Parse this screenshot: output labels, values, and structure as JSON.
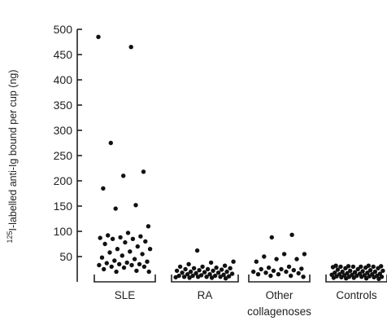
{
  "chart_data": {
    "type": "scatter",
    "title": "",
    "ylabel": "125I-labelled anti-Ig bound per cup (ng)",
    "ylabel_superscript": "125",
    "ylabel_main": "I-labelled anti-Ig bound per cup (ng)",
    "ylim": [
      0,
      500
    ],
    "yticks": [
      50,
      100,
      150,
      200,
      250,
      300,
      350,
      400,
      450,
      500
    ],
    "grid": false,
    "categories": [
      {
        "label": "SLE",
        "label_line2": ""
      },
      {
        "label": "RA",
        "label_line2": ""
      },
      {
        "label": "Other",
        "label_line2": "collagenoses"
      },
      {
        "label": "Controls",
        "label_line2": ""
      }
    ],
    "series": [
      {
        "category": "SLE",
        "values": [
          485,
          465,
          275,
          218,
          210,
          185,
          152,
          145,
          110,
          97,
          92,
          90,
          88,
          87,
          85,
          85,
          80,
          78,
          75,
          70,
          65,
          65,
          60,
          58,
          55,
          52,
          48,
          45,
          42,
          40,
          38,
          37,
          35,
          35,
          33,
          33,
          30,
          30,
          28,
          25,
          22,
          20,
          20
        ]
      },
      {
        "category": "RA",
        "values": [
          62,
          40,
          38,
          35,
          32,
          30,
          30,
          28,
          27,
          27,
          25,
          25,
          24,
          23,
          22,
          22,
          20,
          20,
          19,
          18,
          18,
          17,
          16,
          15,
          15,
          14,
          13,
          12,
          12,
          12,
          11,
          10,
          10,
          10,
          10,
          9,
          8,
          8,
          7
        ]
      },
      {
        "category": "Other collagenoses",
        "values": [
          93,
          88,
          55,
          55,
          50,
          45,
          45,
          40,
          30,
          28,
          26,
          25,
          25,
          23,
          22,
          20,
          20,
          18,
          17,
          15,
          15,
          12,
          12,
          10
        ]
      },
      {
        "category": "Controls",
        "values": [
          32,
          32,
          31,
          31,
          30,
          30,
          30,
          30,
          29,
          28,
          27,
          27,
          25,
          24,
          23,
          22,
          22,
          21,
          20,
          20,
          19,
          18,
          18,
          17,
          16,
          16,
          15,
          15,
          14,
          14,
          13,
          13,
          12,
          12,
          11,
          11,
          10,
          10,
          10,
          9,
          9,
          8,
          8,
          7,
          7,
          6
        ]
      }
    ]
  }
}
